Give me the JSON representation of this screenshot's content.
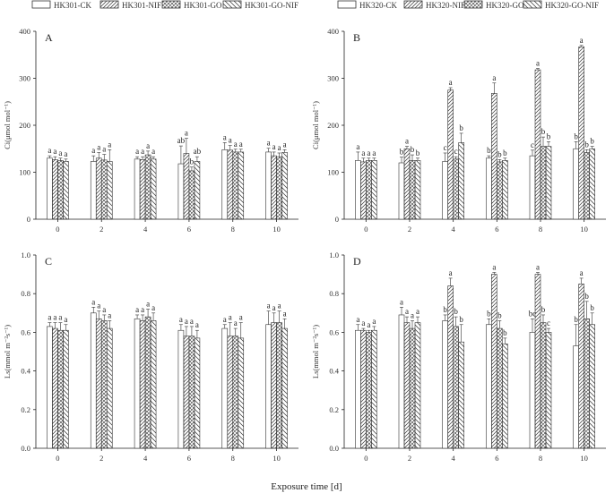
{
  "xlabel": "Exposure time [d]",
  "colors": {
    "ink": "#333333",
    "axis": "#222222",
    "bar_fill": "#ffffff"
  },
  "legends": {
    "left": [
      "HK301-CK",
      "HK301-NIF",
      "HK301-GO",
      "HK301-GO-NIF"
    ],
    "right": [
      "HK320-CK",
      "HK320-NIF",
      "HK320-GO",
      "HK320-GO-NIF"
    ]
  },
  "chart_data": [
    {
      "panel": "A",
      "type": "bar",
      "ylabel": "Ci(μmol mol⁻¹)",
      "categories": [
        "0",
        "2",
        "4",
        "6",
        "8",
        "10"
      ],
      "ylim": [
        0,
        400
      ],
      "yticks": [
        "0",
        "100",
        "200",
        "300",
        "400"
      ],
      "series": [
        {
          "name": "HK301-CK",
          "values": [
            130,
            123,
            128,
            118,
            148,
            143
          ],
          "errors": [
            5,
            12,
            5,
            38,
            15,
            8
          ],
          "labels": [
            "a",
            "a",
            "a",
            "ab",
            "a",
            "a"
          ]
        },
        {
          "name": "HK301-NIF",
          "values": [
            127,
            130,
            127,
            140,
            147,
            135
          ],
          "errors": [
            6,
            12,
            6,
            32,
            10,
            8
          ],
          "labels": [
            "a",
            "a",
            "a",
            "a",
            "a",
            "a"
          ]
        },
        {
          "name": "HK301-GO",
          "values": [
            125,
            126,
            137,
            103,
            143,
            133
          ],
          "errors": [
            5,
            12,
            8,
            8,
            6,
            8
          ],
          "labels": [
            "a",
            "a",
            "a",
            "b",
            "a",
            "a"
          ]
        },
        {
          "name": "HK301-GO-NIF",
          "values": [
            123,
            123,
            128,
            123,
            143,
            142
          ],
          "errors": [
            5,
            25,
            5,
            10,
            6,
            6
          ],
          "labels": [
            "a",
            "a",
            "a",
            "ab",
            "a",
            "a"
          ]
        }
      ]
    },
    {
      "panel": "B",
      "type": "bar",
      "ylabel": "Ci(μmol mol⁻¹)",
      "categories": [
        "0",
        "2",
        "4",
        "6",
        "8",
        "10"
      ],
      "ylim": [
        0,
        400
      ],
      "yticks": [
        "0",
        "100",
        "200",
        "300",
        "400"
      ],
      "series": [
        {
          "name": "HK320-CK",
          "values": [
            125,
            120,
            123,
            130,
            135,
            150
          ],
          "errors": [
            18,
            12,
            18,
            5,
            12,
            15
          ],
          "labels": [
            "a",
            "b",
            "c",
            "b",
            "c",
            "b"
          ]
        },
        {
          "name": "HK320-NIF",
          "values": [
            122,
            150,
            275,
            268,
            318,
            367
          ],
          "errors": [
            8,
            5,
            5,
            22,
            3,
            3
          ],
          "labels": [
            "a",
            "a",
            "a",
            "a",
            "a",
            "a"
          ]
        },
        {
          "name": "HK320-GO",
          "values": [
            125,
            125,
            128,
            122,
            155,
            142
          ],
          "errors": [
            5,
            12,
            5,
            5,
            20,
            6
          ],
          "labels": [
            "a",
            "b",
            "c",
            "b",
            "b",
            "b"
          ]
        },
        {
          "name": "HK320-GO-NIF",
          "values": [
            125,
            125,
            163,
            125,
            155,
            150
          ],
          "errors": [
            5,
            5,
            20,
            5,
            10,
            5
          ],
          "labels": [
            "a",
            "b",
            "b",
            "b",
            "b",
            "b"
          ]
        }
      ]
    },
    {
      "panel": "C",
      "type": "bar",
      "ylabel": "Ls(mmol m⁻²s⁻¹)",
      "categories": [
        "0",
        "2",
        "4",
        "6",
        "8",
        "10"
      ],
      "ylim": [
        0,
        1.0
      ],
      "yticks": [
        "0.0",
        "0.2",
        "0.4",
        "0.6",
        "0.8",
        "1.0"
      ],
      "series": [
        {
          "name": "HK301-CK",
          "values": [
            0.63,
            0.7,
            0.67,
            0.61,
            0.62,
            0.64
          ],
          "errors": [
            0.02,
            0.03,
            0.02,
            0.03,
            0.02,
            0.07
          ],
          "labels": [
            "a",
            "a",
            "a",
            "a",
            "a",
            "a"
          ]
        },
        {
          "name": "HK301-NIF",
          "values": [
            0.62,
            0.67,
            0.66,
            0.58,
            0.58,
            0.65
          ],
          "errors": [
            0.03,
            0.04,
            0.03,
            0.05,
            0.07,
            0.05
          ],
          "labels": [
            "a",
            "a",
            "a",
            "a",
            "a",
            "a"
          ]
        },
        {
          "name": "HK301-GO",
          "values": [
            0.61,
            0.66,
            0.68,
            0.58,
            0.58,
            0.65
          ],
          "errors": [
            0.04,
            0.03,
            0.04,
            0.05,
            0.04,
            0.06
          ],
          "labels": [
            "a",
            "a",
            "a",
            "a",
            "a",
            "a"
          ]
        },
        {
          "name": "HK301-GO-NIF",
          "values": [
            0.61,
            0.62,
            0.66,
            0.57,
            0.57,
            0.62
          ],
          "errors": [
            0.03,
            0.04,
            0.04,
            0.04,
            0.08,
            0.05
          ],
          "labels": [
            "a",
            "a",
            "a",
            "a",
            "a",
            "a"
          ]
        }
      ]
    },
    {
      "panel": "D",
      "type": "bar",
      "ylabel": "Ls(mmol m⁻²s⁻¹)",
      "categories": [
        "0",
        "2",
        "4",
        "6",
        "8",
        "10"
      ],
      "ylim": [
        0,
        1.0
      ],
      "yticks": [
        "0.0",
        "0.2",
        "0.4",
        "0.6",
        "0.8",
        "1.0"
      ],
      "series": [
        {
          "name": "HK320-CK",
          "values": [
            0.61,
            0.69,
            0.66,
            0.64,
            0.6,
            0.53
          ],
          "errors": [
            0.03,
            0.04,
            0.03,
            0.03,
            0.07,
            0.11
          ],
          "labels": [
            "a",
            "a",
            "b",
            "b",
            "bc",
            "b"
          ]
        },
        {
          "name": "HK320-NIF",
          "values": [
            0.61,
            0.65,
            0.84,
            0.9,
            0.9,
            0.85
          ],
          "errors": [
            0.01,
            0.03,
            0.04,
            0.01,
            0.01,
            0.03
          ],
          "labels": [
            "a",
            "a",
            "a",
            "a",
            "a",
            "a"
          ]
        },
        {
          "name": "HK320-GO",
          "values": [
            0.6,
            0.62,
            0.63,
            0.62,
            0.65,
            0.67
          ],
          "errors": [
            0.01,
            0.04,
            0.05,
            0.04,
            0.04,
            0.09
          ],
          "labels": [
            "a",
            "a",
            "b",
            "b",
            "b",
            "b"
          ]
        },
        {
          "name": "HK320-GO-NIF",
          "values": [
            0.61,
            0.65,
            0.55,
            0.54,
            0.6,
            0.64
          ],
          "errors": [
            0.02,
            0.03,
            0.09,
            0.03,
            0.02,
            0.06
          ],
          "labels": [
            "a",
            "a",
            "b",
            "b",
            "c",
            "b"
          ]
        }
      ]
    }
  ]
}
